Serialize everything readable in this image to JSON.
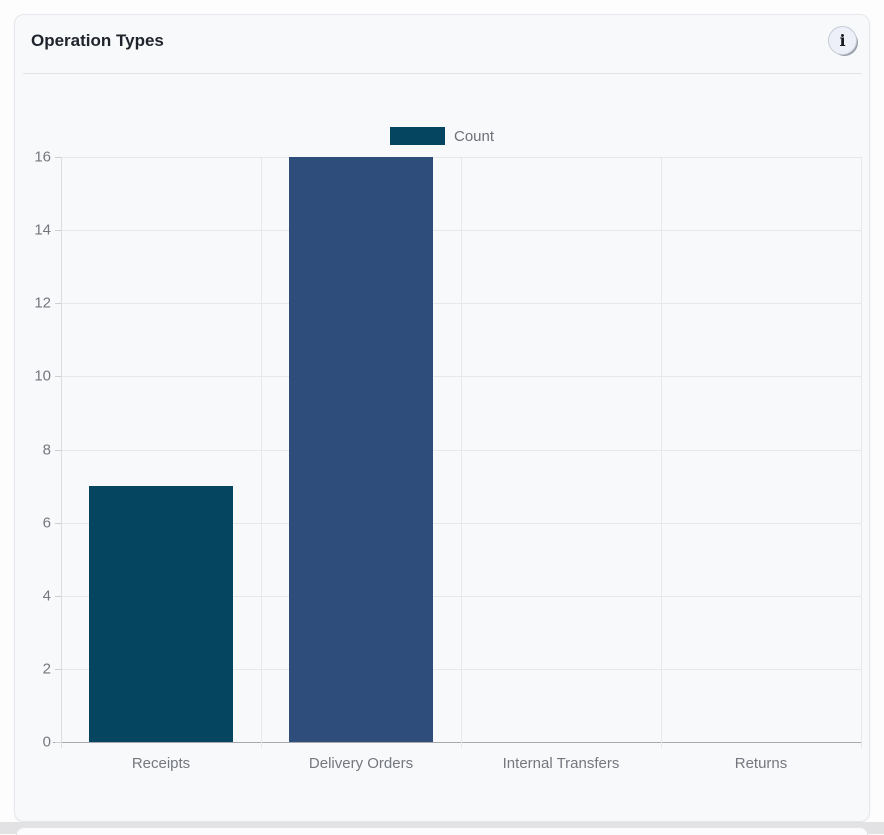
{
  "card": {
    "title": "Operation Types",
    "info_icon": "i"
  },
  "chart_data": {
    "type": "bar",
    "title": "Operation Types",
    "categories": [
      "Receipts",
      "Delivery Orders",
      "Internal Transfers",
      "Returns"
    ],
    "series": [
      {
        "name": "Count",
        "values": [
          7,
          16,
          0,
          0
        ]
      }
    ],
    "xlabel": "",
    "ylabel": "",
    "ylim": [
      0,
      16
    ],
    "yticks": [
      0,
      2,
      4,
      6,
      8,
      10,
      12,
      14,
      16
    ],
    "grid": true,
    "legend_position": "top-center",
    "legend_color": "#05455f",
    "bar_colors": [
      "#05455f",
      "#2f4d7a",
      "#2f4d7a",
      "#2f4d7a"
    ]
  },
  "colors": {
    "card_background": "#f8f9fb",
    "card_border": "#e6e7ea",
    "gridline": "#e8e8ea",
    "baseline": "#a7a7ab",
    "axis_text": "#74777d",
    "title_text": "#1f232b"
  }
}
